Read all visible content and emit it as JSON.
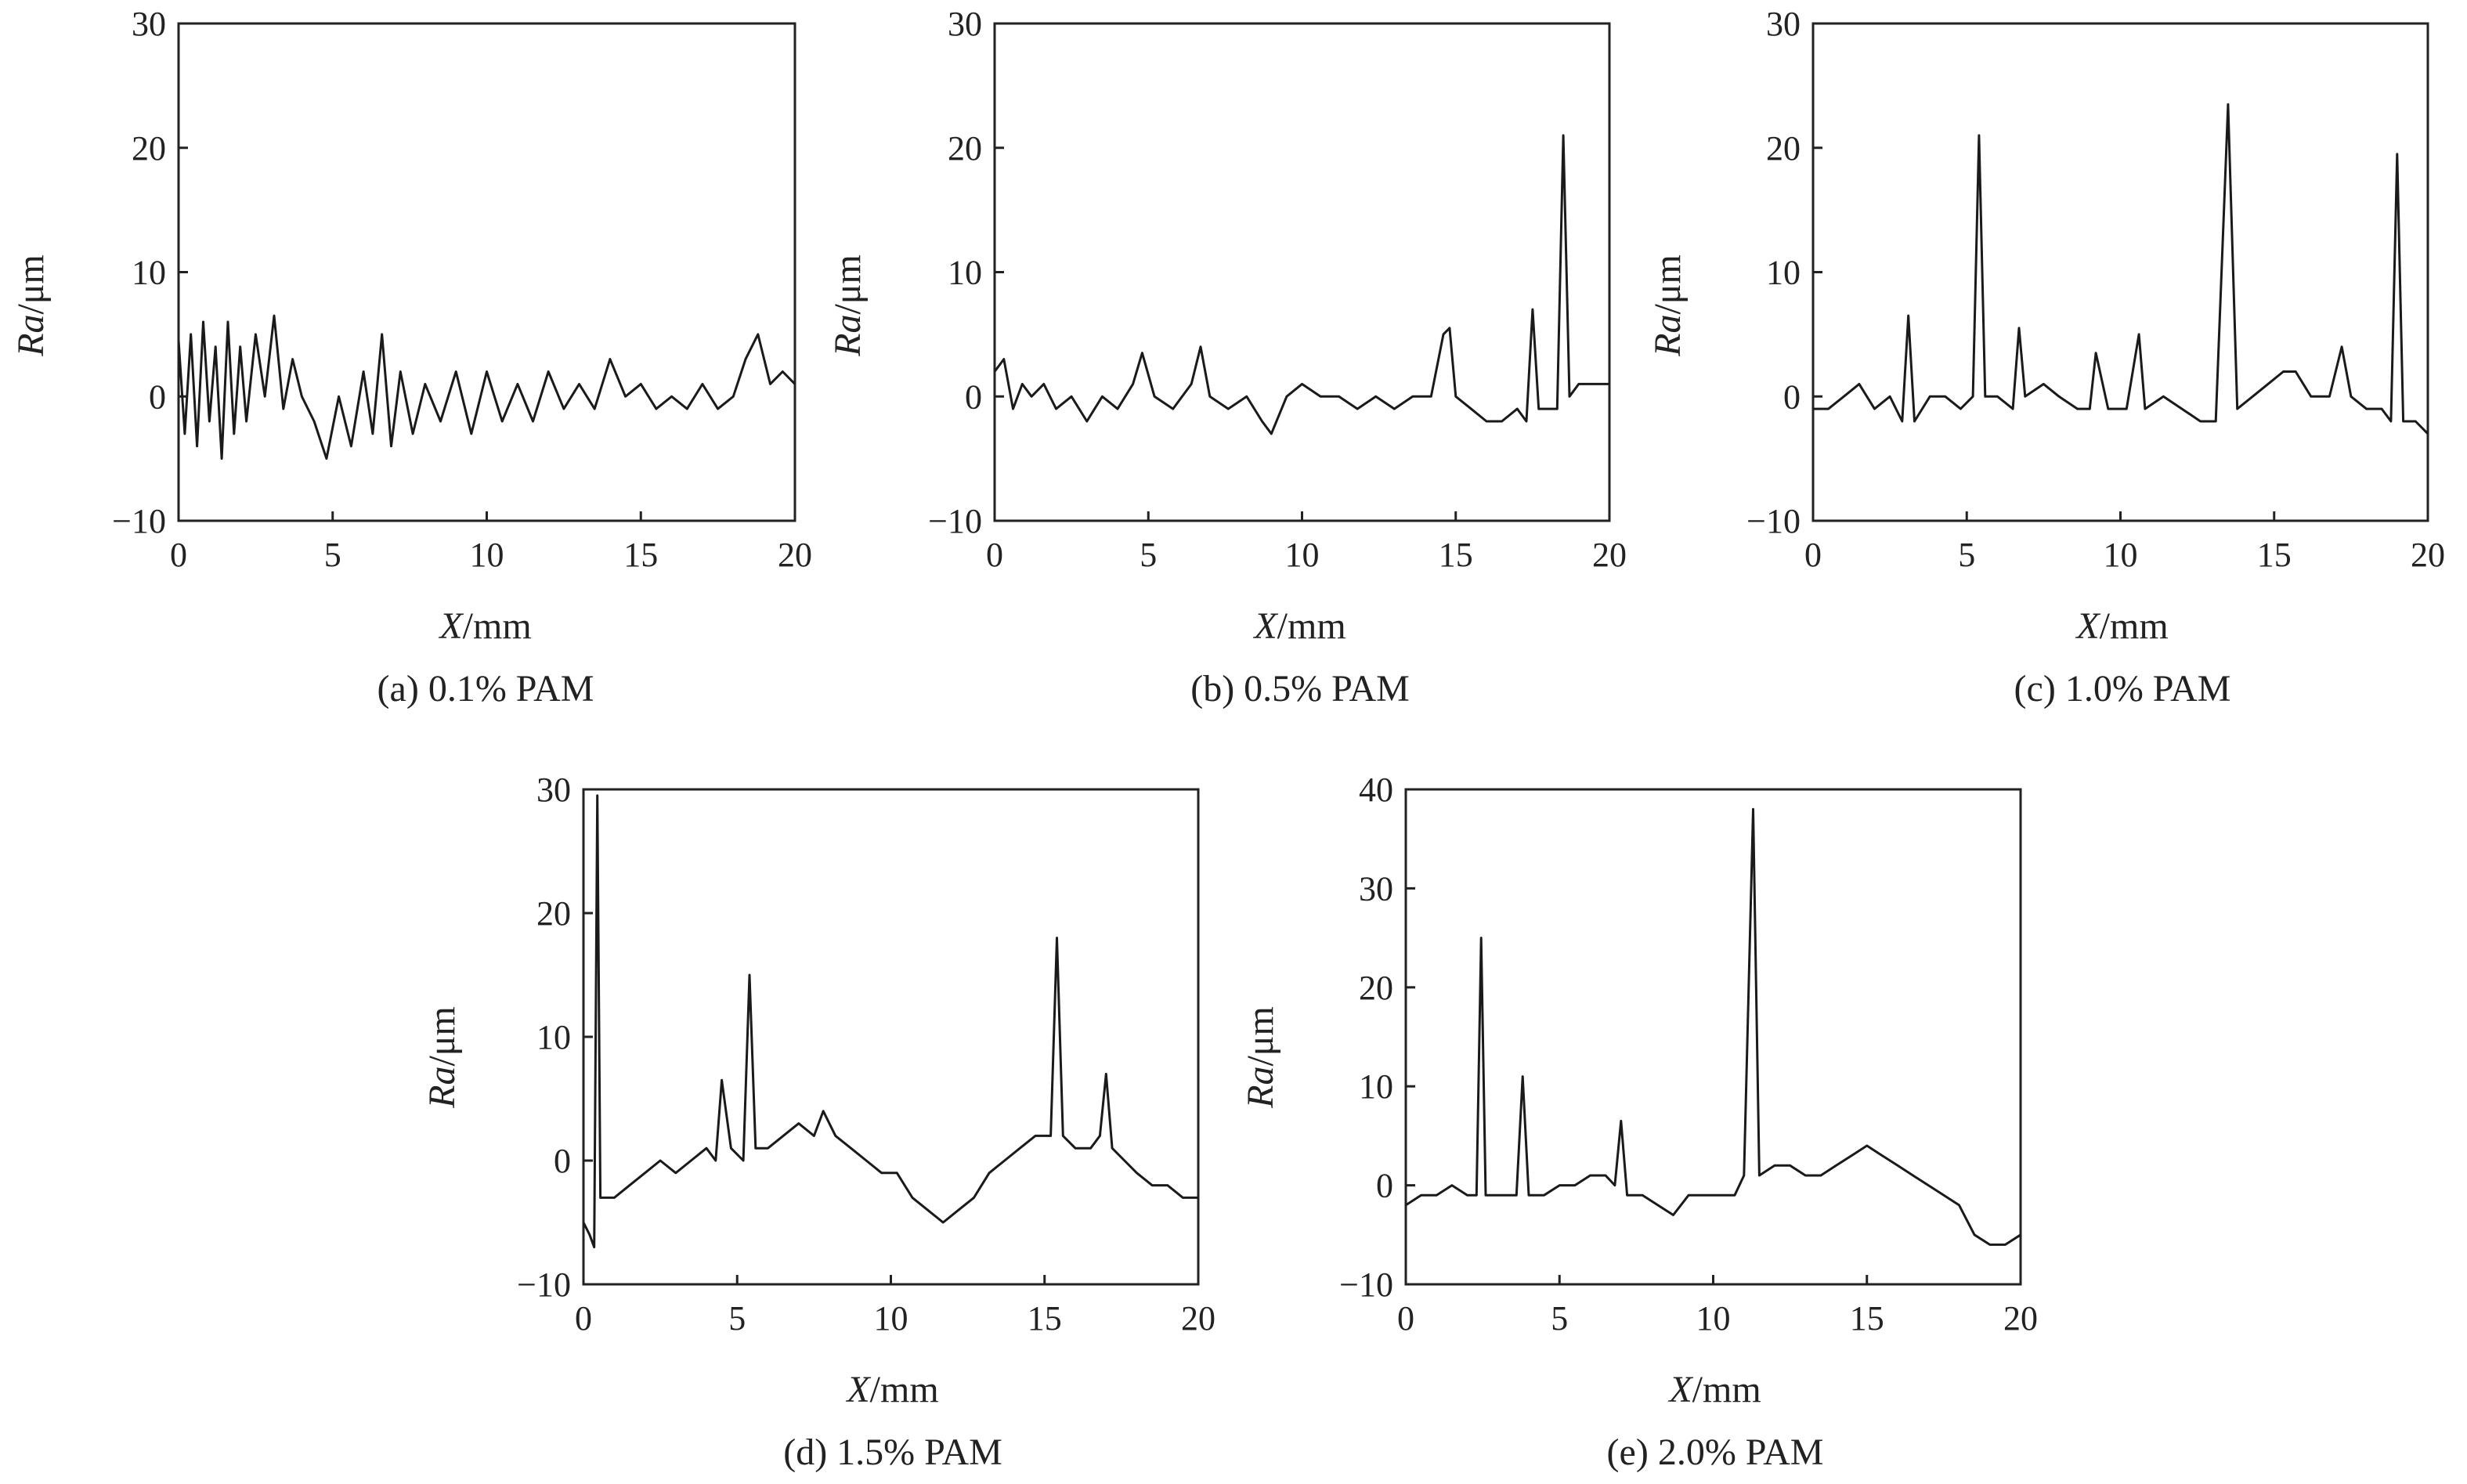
{
  "chart_data": [
    {
      "id": "a",
      "type": "line",
      "caption": "(a) 0.1% PAM",
      "xlabel_italic": "X",
      "xlabel_unit": "/mm",
      "ylabel_italic": "Ra",
      "ylabel_unit": "/μm",
      "xlim": [
        0,
        20
      ],
      "ylim": [
        -10,
        30
      ],
      "xticks": [
        0,
        5,
        10,
        15,
        20
      ],
      "yticks": [
        -10,
        0,
        10,
        20,
        30
      ],
      "xtick_labels": [
        "0",
        "5",
        "10",
        "15",
        "20"
      ],
      "ytick_labels": [
        "−10",
        "0",
        "10",
        "20",
        "30"
      ],
      "grid": false,
      "series": [
        {
          "x": [
            0,
            0.2,
            0.4,
            0.6,
            0.8,
            1.0,
            1.2,
            1.4,
            1.6,
            1.8,
            2.0,
            2.2,
            2.5,
            2.8,
            3.1,
            3.4,
            3.7,
            4.0,
            4.4,
            4.8,
            5.2,
            5.6,
            6.0,
            6.3,
            6.6,
            6.9,
            7.2,
            7.6,
            8.0,
            8.5,
            9.0,
            9.5,
            10.0,
            10.5,
            11.0,
            11.5,
            12.0,
            12.5,
            13.0,
            13.5,
            14.0,
            14.5,
            15.0,
            15.5,
            16.0,
            16.5,
            17.0,
            17.5,
            18.0,
            18.4,
            18.8,
            19.2,
            19.6,
            20.0
          ],
          "y": [
            4.5,
            -3,
            5,
            -4,
            6,
            -2,
            4,
            -5,
            6,
            -3,
            4,
            -2,
            5,
            0,
            6.5,
            -1,
            3,
            0,
            -2,
            -5,
            0,
            -4,
            2,
            -3,
            5,
            -4,
            2,
            -3,
            1,
            -2,
            2,
            -3,
            2,
            -2,
            1,
            -2,
            2,
            -1,
            1,
            -1,
            3,
            0,
            1,
            -1,
            0,
            -1,
            1,
            -1,
            0,
            3,
            5,
            1,
            2,
            1
          ]
        }
      ]
    },
    {
      "id": "b",
      "type": "line",
      "caption": "(b) 0.5% PAM",
      "xlabel_italic": "X",
      "xlabel_unit": "/mm",
      "ylabel_italic": "Ra",
      "ylabel_unit": "/μm",
      "xlim": [
        0,
        20
      ],
      "ylim": [
        -10,
        30
      ],
      "xticks": [
        0,
        5,
        10,
        15,
        20
      ],
      "yticks": [
        -10,
        0,
        10,
        20,
        30
      ],
      "xtick_labels": [
        "0",
        "5",
        "10",
        "15",
        "20"
      ],
      "ytick_labels": [
        "−10",
        "0",
        "10",
        "20",
        "30"
      ],
      "grid": false,
      "series": [
        {
          "x": [
            0,
            0.3,
            0.6,
            0.9,
            1.2,
            1.6,
            2.0,
            2.5,
            3.0,
            3.5,
            4.0,
            4.5,
            4.8,
            5.2,
            5.8,
            6.4,
            6.7,
            7.0,
            7.6,
            8.2,
            8.7,
            9.0,
            9.5,
            10.0,
            10.6,
            11.2,
            11.8,
            12.4,
            13.0,
            13.6,
            14.2,
            14.6,
            14.8,
            15.0,
            15.5,
            16.0,
            16.5,
            17.0,
            17.3,
            17.5,
            17.7,
            18.0,
            18.3,
            18.5,
            18.7,
            19.0,
            19.5,
            20.0
          ],
          "y": [
            2,
            3,
            -1,
            1,
            0,
            1,
            -1,
            0,
            -2,
            0,
            -1,
            1,
            3.5,
            0,
            -1,
            1,
            4,
            0,
            -1,
            0,
            -2,
            -3,
            0,
            1,
            0,
            0,
            -1,
            0,
            -1,
            0,
            0,
            5,
            5.5,
            0,
            -1,
            -2,
            -2,
            -1,
            -2,
            7,
            -1,
            -1,
            -1,
            21,
            0,
            1,
            1,
            1
          ]
        }
      ]
    },
    {
      "id": "c",
      "type": "line",
      "caption": "(c) 1.0% PAM",
      "xlabel_italic": "X",
      "xlabel_unit": "/mm",
      "ylabel_italic": "Ra",
      "ylabel_unit": "/μm",
      "xlim": [
        0,
        20
      ],
      "ylim": [
        -10,
        30
      ],
      "xticks": [
        0,
        5,
        10,
        15,
        20
      ],
      "yticks": [
        -10,
        0,
        10,
        20,
        30
      ],
      "xtick_labels": [
        "0",
        "5",
        "10",
        "15",
        "20"
      ],
      "ytick_labels": [
        "−10",
        "0",
        "10",
        "20",
        "30"
      ],
      "grid": false,
      "series": [
        {
          "x": [
            0,
            0.5,
            1.0,
            1.5,
            2.0,
            2.5,
            2.9,
            3.1,
            3.3,
            3.8,
            4.3,
            4.8,
            5.2,
            5.4,
            5.6,
            6.0,
            6.5,
            6.7,
            6.9,
            7.5,
            8.0,
            8.6,
            9.0,
            9.2,
            9.6,
            10.2,
            10.6,
            10.8,
            11.4,
            12.0,
            12.6,
            13.1,
            13.5,
            13.8,
            14.3,
            14.8,
            15.3,
            15.7,
            16.2,
            16.8,
            17.2,
            17.5,
            18.0,
            18.5,
            18.8,
            19.0,
            19.2,
            19.6,
            20.0
          ],
          "y": [
            -1,
            -1,
            0,
            1,
            -1,
            0,
            -2,
            6.5,
            -2,
            0,
            0,
            -1,
            0,
            21,
            0,
            0,
            -1,
            5.5,
            0,
            1,
            0,
            -1,
            -1,
            3.5,
            -1,
            -1,
            5,
            -1,
            0,
            -1,
            -2,
            -2,
            23.5,
            -1,
            0,
            1,
            2,
            2,
            0,
            0,
            4,
            0,
            -1,
            -1,
            -2,
            19.5,
            -2,
            -2,
            -3
          ]
        }
      ]
    },
    {
      "id": "d",
      "type": "line",
      "caption": "(d) 1.5% PAM",
      "xlabel_italic": "X",
      "xlabel_unit": "/mm",
      "ylabel_italic": "Ra",
      "ylabel_unit": "/μm",
      "xlim": [
        0,
        20
      ],
      "ylim": [
        -10,
        30
      ],
      "xticks": [
        0,
        5,
        10,
        15,
        20
      ],
      "yticks": [
        -10,
        0,
        10,
        20,
        30
      ],
      "xtick_labels": [
        "0",
        "5",
        "10",
        "15",
        "20"
      ],
      "ytick_labels": [
        "−10",
        "0",
        "10",
        "20",
        "30"
      ],
      "grid": false,
      "series": [
        {
          "x": [
            0,
            0.2,
            0.35,
            0.45,
            0.55,
            1.0,
            1.5,
            2.0,
            2.5,
            3.0,
            3.5,
            4.0,
            4.3,
            4.5,
            4.8,
            5.2,
            5.4,
            5.6,
            6.0,
            6.5,
            7.0,
            7.5,
            7.8,
            8.2,
            8.7,
            9.2,
            9.7,
            10.2,
            10.7,
            11.2,
            11.7,
            12.2,
            12.7,
            13.2,
            13.7,
            14.2,
            14.7,
            15.2,
            15.4,
            15.6,
            16.0,
            16.5,
            16.8,
            17.0,
            17.2,
            17.6,
            18.0,
            18.5,
            19.0,
            19.5,
            20.0
          ],
          "y": [
            -5,
            -6,
            -7,
            29.5,
            -3,
            -3,
            -2,
            -1,
            0,
            -1,
            0,
            1,
            0,
            6.5,
            1,
            0,
            15,
            1,
            1,
            2,
            3,
            2,
            4,
            2,
            1,
            0,
            -1,
            -1,
            -3,
            -4,
            -5,
            -4,
            -3,
            -1,
            0,
            1,
            2,
            2,
            18,
            2,
            1,
            1,
            2,
            7,
            1,
            0,
            -1,
            -2,
            -2,
            -3,
            -3
          ]
        }
      ]
    },
    {
      "id": "e",
      "type": "line",
      "caption": "(e) 2.0% PAM",
      "xlabel_italic": "X",
      "xlabel_unit": "/mm",
      "ylabel_italic": "Ra",
      "ylabel_unit": "/μm",
      "xlim": [
        0,
        20
      ],
      "ylim": [
        -10,
        40
      ],
      "xticks": [
        0,
        5,
        10,
        15,
        20
      ],
      "yticks": [
        -10,
        0,
        10,
        20,
        30,
        40
      ],
      "xtick_labels": [
        "0",
        "5",
        "10",
        "15",
        "20"
      ],
      "ytick_labels": [
        "−10",
        "0",
        "10",
        "20",
        "30",
        "40"
      ],
      "grid": false,
      "series": [
        {
          "x": [
            0,
            0.5,
            1.0,
            1.5,
            2.0,
            2.3,
            2.45,
            2.6,
            3.0,
            3.6,
            3.8,
            4.0,
            4.5,
            5.0,
            5.5,
            6.0,
            6.5,
            6.8,
            7.0,
            7.2,
            7.7,
            8.2,
            8.7,
            9.2,
            9.7,
            10.2,
            10.7,
            11.0,
            11.3,
            11.5,
            12.0,
            12.5,
            13.0,
            13.5,
            14.0,
            14.5,
            15.0,
            15.5,
            16.0,
            16.5,
            17.0,
            17.5,
            18.0,
            18.5,
            19.0,
            19.5,
            20.0
          ],
          "y": [
            -2,
            -1,
            -1,
            0,
            -1,
            -1,
            25,
            -1,
            -1,
            -1,
            11,
            -1,
            -1,
            0,
            0,
            1,
            1,
            0,
            6.5,
            -1,
            -1,
            -2,
            -3,
            -1,
            -1,
            -1,
            -1,
            1,
            38,
            1,
            2,
            2,
            1,
            1,
            2,
            3,
            4,
            3,
            2,
            1,
            0,
            -1,
            -2,
            -5,
            -6,
            -6,
            -5
          ]
        }
      ]
    }
  ]
}
